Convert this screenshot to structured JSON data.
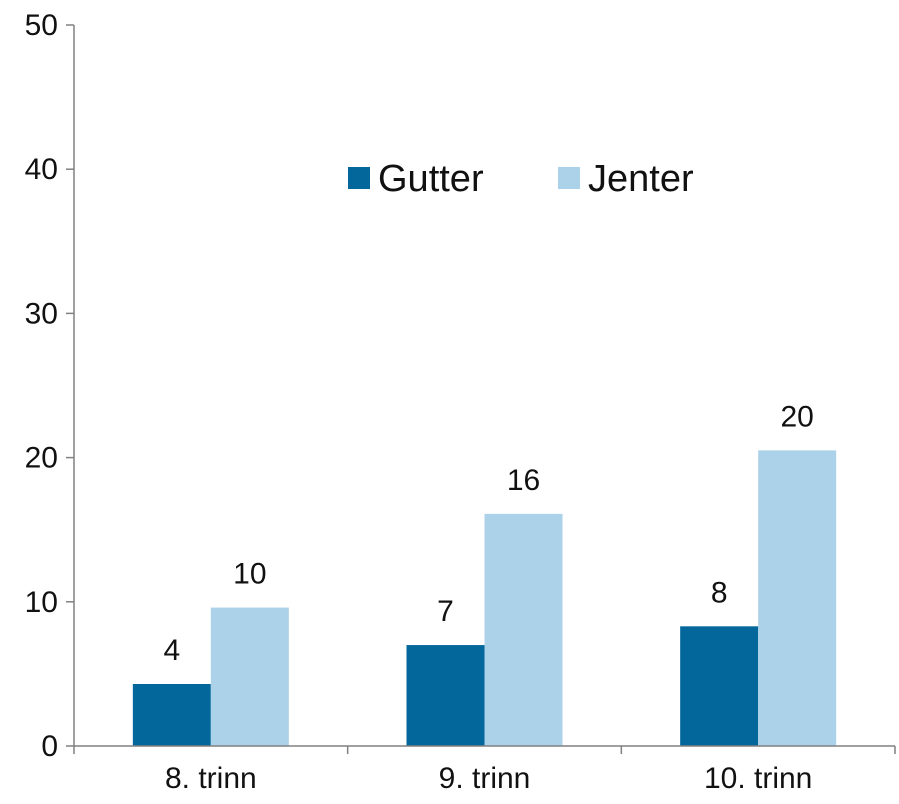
{
  "chart_data": {
    "type": "bar",
    "categories": [
      "8. trinn",
      "9. trinn",
      "10. trinn"
    ],
    "series": [
      {
        "name": "Gutter",
        "values": [
          4.3,
          7.0,
          8.3
        ],
        "data_labels": [
          "4",
          "7",
          "8"
        ],
        "color": "#04679c"
      },
      {
        "name": "Jenter",
        "values": [
          9.6,
          16.1,
          20.5
        ],
        "data_labels": [
          "10",
          "16",
          "20"
        ],
        "color": "#acd2e9"
      }
    ],
    "ylim": [
      0,
      50
    ],
    "yticks": [
      0,
      10,
      20,
      30,
      40,
      50
    ],
    "ytick_labels": [
      "0",
      "10",
      "20",
      "30",
      "40",
      "50"
    ],
    "grid": false,
    "legend_position": "top-center",
    "title": "",
    "xlabel": "",
    "ylabel": ""
  }
}
